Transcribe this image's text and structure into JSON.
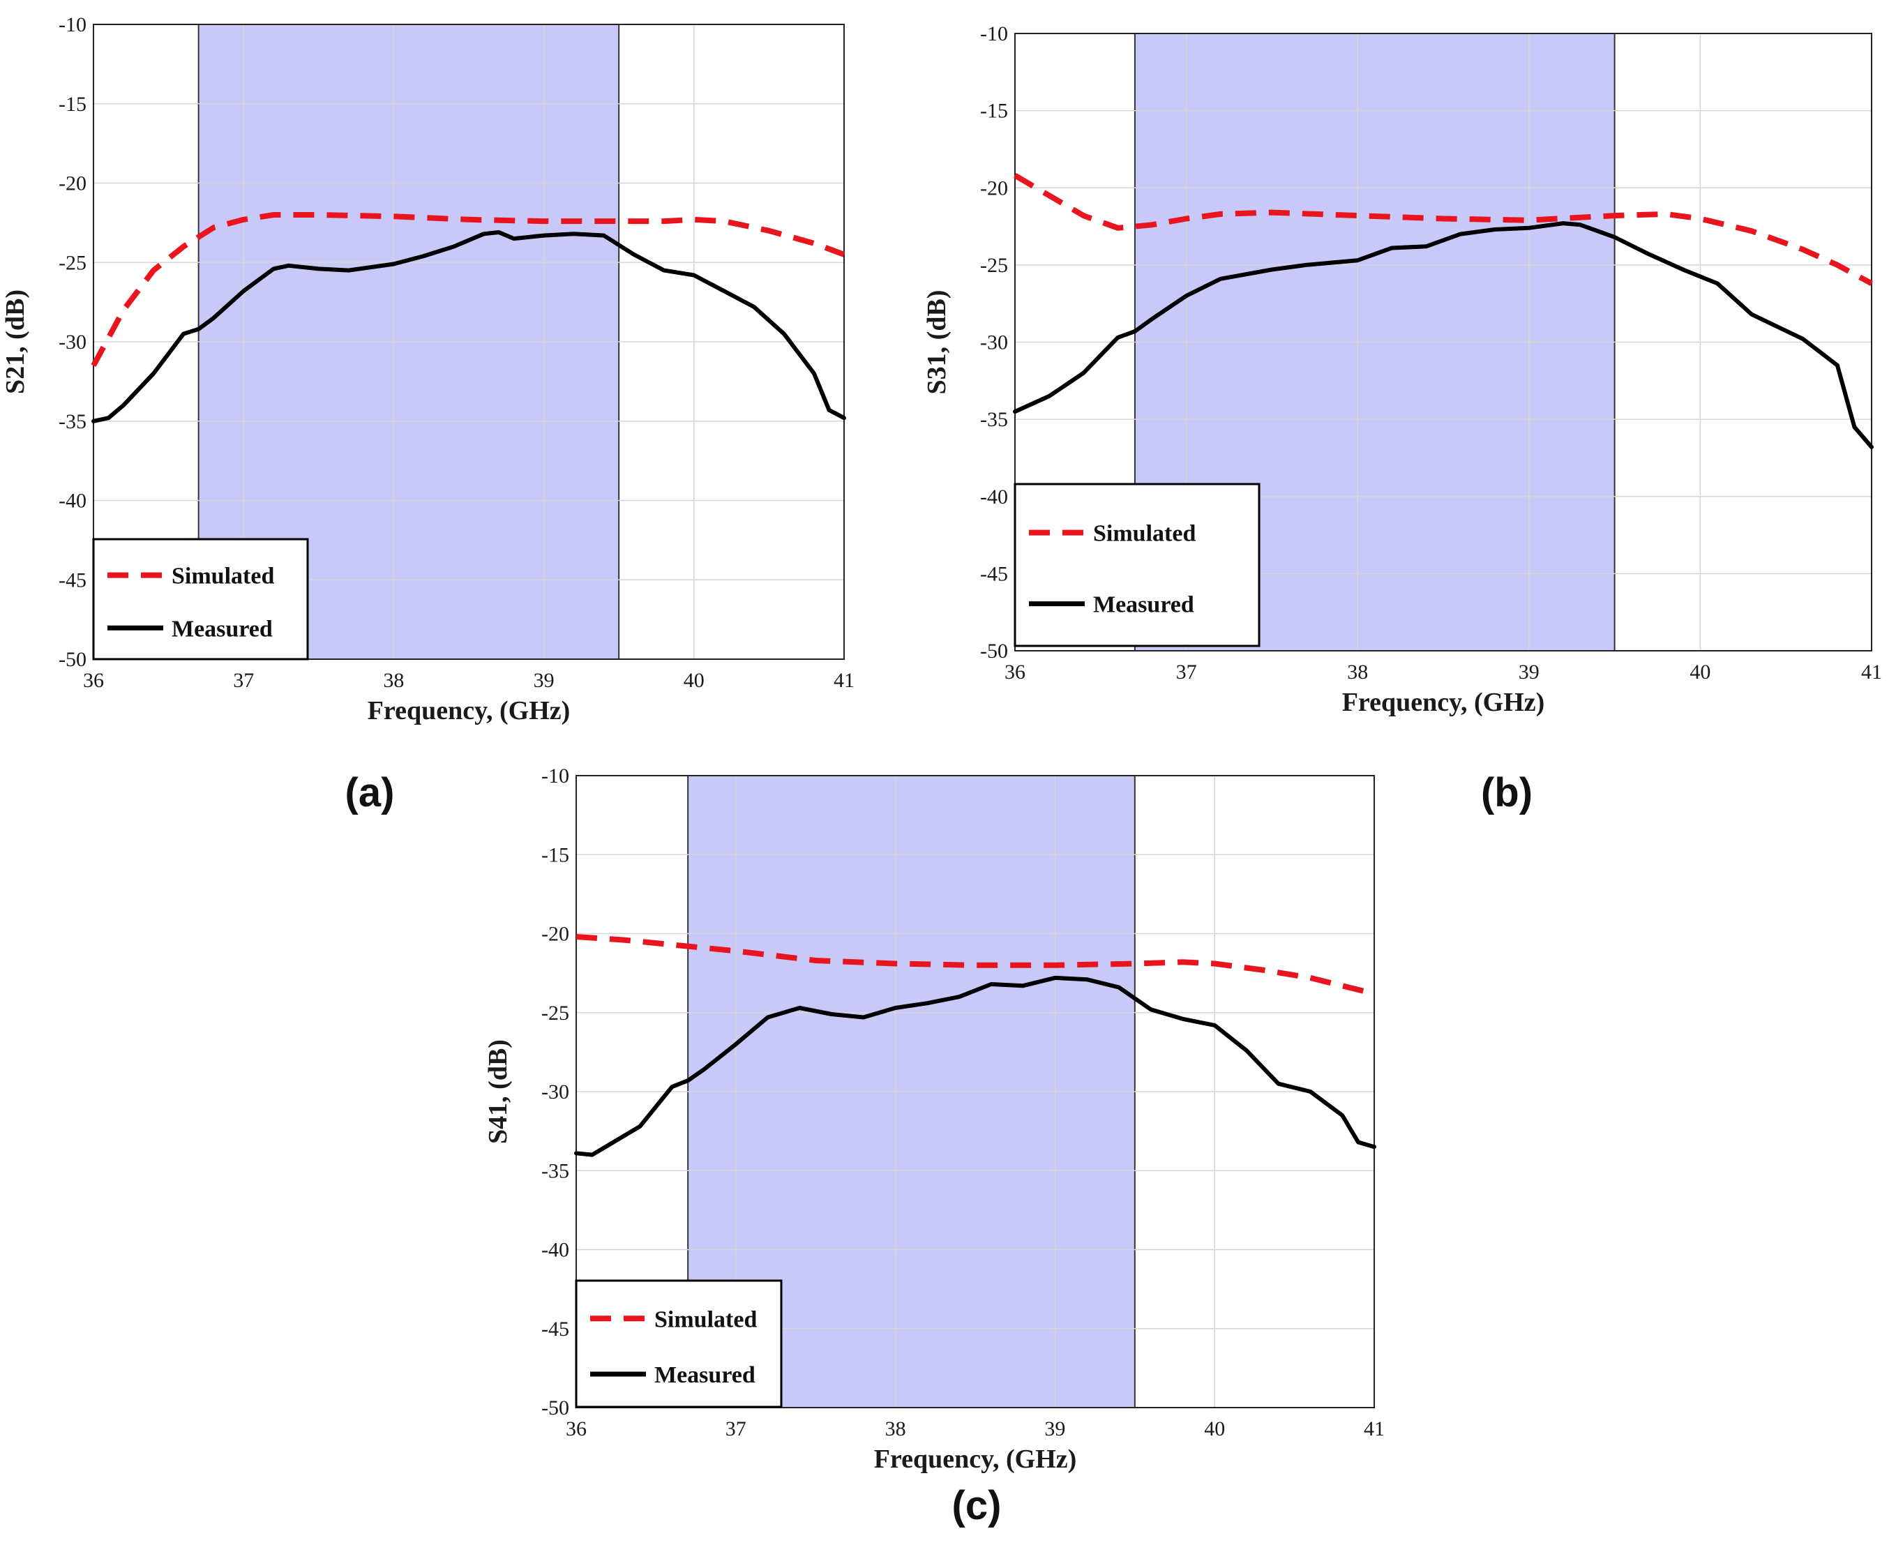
{
  "figure": {
    "panel_labels": [
      "(a)",
      "(b)",
      "(c)"
    ]
  },
  "colors": {
    "band_fill": "#c9c9f9",
    "simulated": "#e8141e",
    "measured": "#000000",
    "grid": "#d6d6d6",
    "axis": "#222222"
  },
  "chart_data": [
    {
      "type": "line",
      "id": "a",
      "xlabel": "Frequency, (GHz)",
      "ylabel": "S21, (dB)",
      "xlim": [
        36,
        41
      ],
      "ylim": [
        -50,
        -10
      ],
      "xticks": [
        36,
        37,
        38,
        39,
        40,
        41
      ],
      "yticks": [
        -10,
        -15,
        -20,
        -25,
        -30,
        -35,
        -40,
        -45,
        -50
      ],
      "grid": true,
      "shaded_band": [
        36.7,
        39.5
      ],
      "legend": {
        "position": "bottom-left",
        "entries": [
          "Simulated",
          "Measured"
        ]
      },
      "series": [
        {
          "name": "Simulated",
          "style": "dashed",
          "x": [
            36,
            36.2,
            36.4,
            36.6,
            36.8,
            37,
            37.2,
            37.5,
            38,
            38.5,
            39,
            39.5,
            39.8,
            40,
            40.2,
            40.5,
            40.8,
            41
          ],
          "y": [
            -31.5,
            -28,
            -25.5,
            -24,
            -22.8,
            -22.3,
            -22,
            -22,
            -22.1,
            -22.3,
            -22.4,
            -22.4,
            -22.4,
            -22.3,
            -22.4,
            -23,
            -23.8,
            -24.5
          ]
        },
        {
          "name": "Measured",
          "style": "solid",
          "x": [
            36,
            36.1,
            36.2,
            36.4,
            36.6,
            36.7,
            36.8,
            37,
            37.2,
            37.3,
            37.5,
            37.7,
            38,
            38.2,
            38.4,
            38.6,
            38.7,
            38.8,
            39,
            39.2,
            39.4,
            39.6,
            39.8,
            40,
            40.2,
            40.4,
            40.6,
            40.8,
            40.9,
            41
          ],
          "y": [
            -35,
            -34.8,
            -34,
            -32,
            -29.5,
            -29.2,
            -28.5,
            -26.8,
            -25.4,
            -25.2,
            -25.4,
            -25.5,
            -25.1,
            -24.6,
            -24,
            -23.2,
            -23.1,
            -23.5,
            -23.3,
            -23.2,
            -23.3,
            -24.5,
            -25.5,
            -25.8,
            -26.8,
            -27.8,
            -29.5,
            -32,
            -34.3,
            -34.8
          ]
        }
      ]
    },
    {
      "type": "line",
      "id": "b",
      "xlabel": "Frequency, (GHz)",
      "ylabel": "S31, (dB)",
      "xlim": [
        36,
        41
      ],
      "ylim": [
        -50,
        -10
      ],
      "xticks": [
        36,
        37,
        38,
        39,
        40,
        41
      ],
      "yticks": [
        -10,
        -15,
        -20,
        -25,
        -30,
        -35,
        -40,
        -45,
        -50
      ],
      "grid": true,
      "shaded_band": [
        36.7,
        39.5
      ],
      "legend": {
        "position": "bottom-left",
        "entries": [
          "Simulated",
          "Measured"
        ]
      },
      "series": [
        {
          "name": "Simulated",
          "style": "dashed",
          "x": [
            36,
            36.2,
            36.4,
            36.6,
            36.8,
            37,
            37.2,
            37.5,
            38,
            38.5,
            39,
            39.5,
            39.8,
            40,
            40.3,
            40.6,
            40.8,
            41
          ],
          "y": [
            -19.2,
            -20.5,
            -21.8,
            -22.6,
            -22.4,
            -22,
            -21.7,
            -21.6,
            -21.8,
            -22,
            -22.1,
            -21.8,
            -21.7,
            -22,
            -22.8,
            -24,
            -25,
            -26.2
          ]
        },
        {
          "name": "Measured",
          "style": "solid",
          "x": [
            36,
            36.2,
            36.4,
            36.6,
            36.7,
            36.8,
            37,
            37.2,
            37.5,
            37.7,
            38,
            38.2,
            38.4,
            38.6,
            38.8,
            39,
            39.2,
            39.3,
            39.5,
            39.7,
            39.9,
            40.1,
            40.3,
            40.6,
            40.8,
            40.9,
            41
          ],
          "y": [
            -34.5,
            -33.5,
            -32,
            -29.7,
            -29.3,
            -28.5,
            -27,
            -25.9,
            -25.3,
            -25,
            -24.7,
            -23.9,
            -23.8,
            -23,
            -22.7,
            -22.6,
            -22.3,
            -22.4,
            -23.2,
            -24.3,
            -25.3,
            -26.2,
            -28.2,
            -29.8,
            -31.5,
            -35.5,
            -36.8
          ]
        }
      ]
    },
    {
      "type": "line",
      "id": "c",
      "xlabel": "Frequency, (GHz)",
      "ylabel": "S41, (dB)",
      "xlim": [
        36,
        41
      ],
      "ylim": [
        -50,
        -10
      ],
      "xticks": [
        36,
        37,
        38,
        39,
        40,
        41
      ],
      "yticks": [
        -10,
        -15,
        -20,
        -25,
        -30,
        -35,
        -40,
        -45,
        -50
      ],
      "grid": true,
      "shaded_band": [
        36.7,
        39.5
      ],
      "legend": {
        "position": "bottom-left",
        "entries": [
          "Simulated",
          "Measured"
        ]
      },
      "series": [
        {
          "name": "Simulated",
          "style": "dashed",
          "x": [
            36,
            36.3,
            36.6,
            37,
            37.5,
            38,
            38.5,
            39,
            39.5,
            39.8,
            40,
            40.3,
            40.6,
            41
          ],
          "y": [
            -20.2,
            -20.4,
            -20.7,
            -21.1,
            -21.7,
            -21.9,
            -22,
            -22,
            -21.9,
            -21.8,
            -21.9,
            -22.3,
            -22.8,
            -23.8
          ],
          "stroke": "dashed"
        },
        {
          "name": "Measured",
          "style": "solid",
          "x": [
            36,
            36.1,
            36.2,
            36.4,
            36.6,
            36.7,
            36.8,
            37,
            37.2,
            37.4,
            37.6,
            37.8,
            38,
            38.2,
            38.4,
            38.6,
            38.8,
            39,
            39.2,
            39.4,
            39.6,
            39.8,
            40,
            40.2,
            40.4,
            40.6,
            40.8,
            40.9,
            41
          ],
          "y": [
            -33.9,
            -34,
            -33.4,
            -32.2,
            -29.7,
            -29.3,
            -28.6,
            -27,
            -25.3,
            -24.7,
            -25.1,
            -25.3,
            -24.7,
            -24.4,
            -24,
            -23.2,
            -23.3,
            -22.8,
            -22.9,
            -23.4,
            -24.8,
            -25.4,
            -25.8,
            -27.4,
            -29.5,
            -30,
            -31.5,
            -33.2,
            -33.5
          ]
        }
      ]
    }
  ]
}
